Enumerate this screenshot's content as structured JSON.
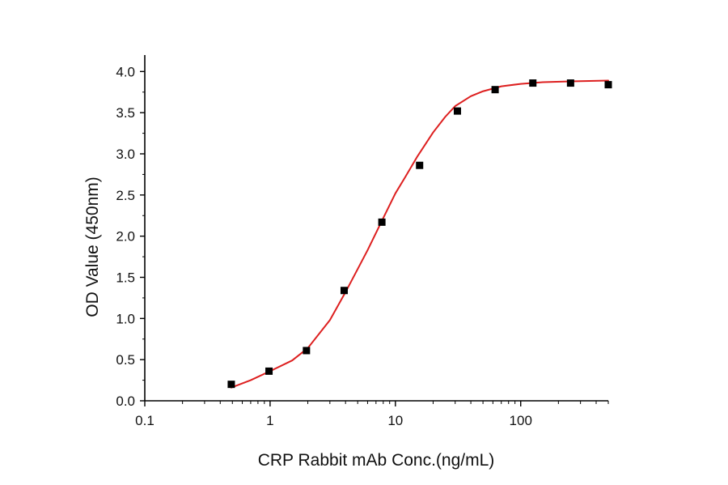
{
  "chart_data": {
    "type": "scatter",
    "title": "",
    "xlabel": "CRP Rabbit mAb Conc.(ng/mL)",
    "ylabel": "OD Value (450nm)",
    "x_scale": "log",
    "xlim": [
      0.1,
      500
    ],
    "ylim": [
      0,
      4.2
    ],
    "grid": false,
    "legend": "none",
    "x_ticks": [
      {
        "value": 0.1,
        "label": "0.1"
      },
      {
        "value": 1,
        "label": "1"
      },
      {
        "value": 10,
        "label": "10"
      },
      {
        "value": 100,
        "label": "100"
      }
    ],
    "y_ticks": [
      {
        "value": 0.0,
        "label": "0.0"
      },
      {
        "value": 0.5,
        "label": "0.5"
      },
      {
        "value": 1.0,
        "label": "1.0"
      },
      {
        "value": 1.5,
        "label": "1.5"
      },
      {
        "value": 2.0,
        "label": "2.0"
      },
      {
        "value": 2.5,
        "label": "2.5"
      },
      {
        "value": 3.0,
        "label": "3.0"
      },
      {
        "value": 3.5,
        "label": "3.5"
      },
      {
        "value": 4.0,
        "label": "4.0"
      }
    ],
    "series": [
      {
        "type": "scatter",
        "marker": "square",
        "color": "#000000",
        "points": [
          {
            "x": 0.49,
            "y": 0.2
          },
          {
            "x": 0.98,
            "y": 0.36
          },
          {
            "x": 1.95,
            "y": 0.61
          },
          {
            "x": 3.9,
            "y": 1.34
          },
          {
            "x": 7.8,
            "y": 2.17
          },
          {
            "x": 15.6,
            "y": 2.86
          },
          {
            "x": 31.25,
            "y": 3.52
          },
          {
            "x": 62.5,
            "y": 3.78
          },
          {
            "x": 125,
            "y": 3.86
          },
          {
            "x": 250,
            "y": 3.86
          },
          {
            "x": 500,
            "y": 3.84
          }
        ]
      },
      {
        "type": "line",
        "color": "#dd1f1f",
        "points": [
          {
            "x": 0.49,
            "y": 0.16
          },
          {
            "x": 0.7,
            "y": 0.25
          },
          {
            "x": 1.0,
            "y": 0.36
          },
          {
            "x": 1.5,
            "y": 0.49
          },
          {
            "x": 2.0,
            "y": 0.64
          },
          {
            "x": 3.0,
            "y": 0.98
          },
          {
            "x": 4.0,
            "y": 1.32
          },
          {
            "x": 5.0,
            "y": 1.6
          },
          {
            "x": 6.0,
            "y": 1.83
          },
          {
            "x": 8.0,
            "y": 2.22
          },
          {
            "x": 10.0,
            "y": 2.52
          },
          {
            "x": 12.0,
            "y": 2.72
          },
          {
            "x": 15.0,
            "y": 2.97
          },
          {
            "x": 20.0,
            "y": 3.26
          },
          {
            "x": 25.0,
            "y": 3.45
          },
          {
            "x": 30.0,
            "y": 3.58
          },
          {
            "x": 40.0,
            "y": 3.7
          },
          {
            "x": 50.0,
            "y": 3.76
          },
          {
            "x": 70.0,
            "y": 3.82
          },
          {
            "x": 100.0,
            "y": 3.85
          },
          {
            "x": 150.0,
            "y": 3.87
          },
          {
            "x": 250.0,
            "y": 3.88
          },
          {
            "x": 500.0,
            "y": 3.89
          }
        ]
      }
    ]
  }
}
